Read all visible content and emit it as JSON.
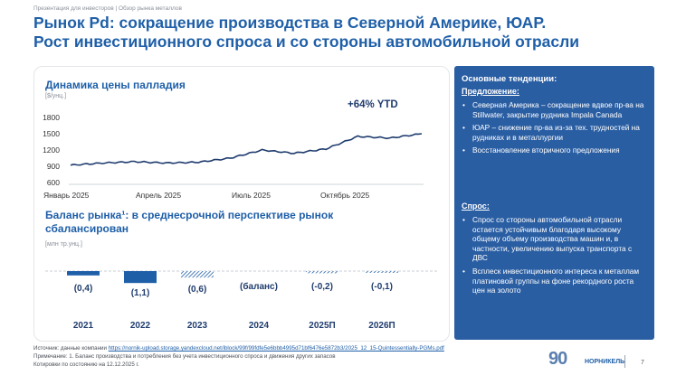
{
  "breadcrumb": "Презентация для инвесторов | Обзор рынка металлов",
  "title_line1": "Рынок Pd: сокращение производства в Северной Америке, ЮАР.",
  "title_line2": "Рост инвестиционного спроса и со стороны автомобильной отрасли",
  "price_chart": {
    "title": "Динамика цены палладия",
    "unit": "[$/унц.]",
    "annotation": "+64% YTD",
    "y_ticks": [
      "1800",
      "1500",
      "1200",
      "900",
      "600"
    ],
    "x_ticks": [
      "Январь 2025",
      "Апрель 2025",
      "Июль 2025",
      "Октябрь 2025"
    ]
  },
  "balance": {
    "title_line1": "Баланс рынка¹: в среднесрочной перспективе рынок",
    "title_line2": "сбалансирован",
    "unit": "[млн тр.унц.]",
    "years": [
      "2021",
      "2022",
      "2023",
      "2024",
      "2025П",
      "2026П"
    ],
    "labels": [
      "(0,4)",
      "(1,1)",
      "(0,6)",
      "(баланс)",
      "(-0,2)",
      "(-0,1)"
    ]
  },
  "chart_data": {
    "type": "line",
    "title": "Динамика цены палладия",
    "ylabel": "$/унц.",
    "ylim": [
      600,
      1800
    ],
    "x": [
      "Январь 2025",
      "Февраль 2025",
      "Март 2025",
      "Апрель 2025",
      "Май 2025",
      "Июнь 2025",
      "Июль 2025",
      "Август 2025",
      "Сентябрь 2025",
      "Октябрь 2025",
      "Ноябрь 2025",
      "Декабрь 2025"
    ],
    "values": [
      920,
      960,
      985,
      960,
      975,
      1050,
      1200,
      1140,
      1220,
      1450,
      1420,
      1500
    ],
    "bar_chart": {
      "type": "bar",
      "title": "Баланс рынка",
      "ylabel": "млн тр.унц.",
      "categories": [
        "2021",
        "2022",
        "2023",
        "2024",
        "2025П",
        "2026П"
      ],
      "values": [
        -0.4,
        -1.1,
        -0.6,
        0,
        -0.2,
        -0.1
      ]
    }
  },
  "panel": {
    "heading": "Основные тенденции:",
    "supply_label": "Предложение:",
    "supply_items": [
      "Северная Америка – сокращение вдвое пр-ва на Stillwater, закрытие рудника Impala Canada",
      "ЮАР – снижение пр-ва из-за тех. трудностей на рудниках и в металлургии",
      "Восстановление вторичного предложения"
    ],
    "demand_label": "Спрос:",
    "demand_items": [
      "Спрос со стороны автомобильной отрасли остается устойчивым благодаря высокому общему объему производства машин и, в частности, увеличению выпуска транспорта с ДВС",
      "Всплеск инвестиционного интереса к металлам платиновой группы на фоне рекордного роста цен на золото"
    ]
  },
  "footer": {
    "source_prefix": "Источник: данные компании",
    "source_link": "https://nornik-upload.storage.yandexcloud.net/iblock/99f/99fdfe5e6bbb4995d71bf6476e5872b3/2025_12_15-Quintessentially-PGMs.pdf",
    "note": "Примечание: 1. Баланс производства и потребления без учета инвестиционного спроса и движения других запасов",
    "quotes": "Котировки по состоянию на 12.12.2025 г."
  },
  "logo_number": "90",
  "logo_text": "НОРНИКЕЛЬ",
  "page_number": "7",
  "colors": {
    "brand": "#1f5fa8",
    "panel": "#2a5ea3",
    "line": "#1f3c6e"
  }
}
